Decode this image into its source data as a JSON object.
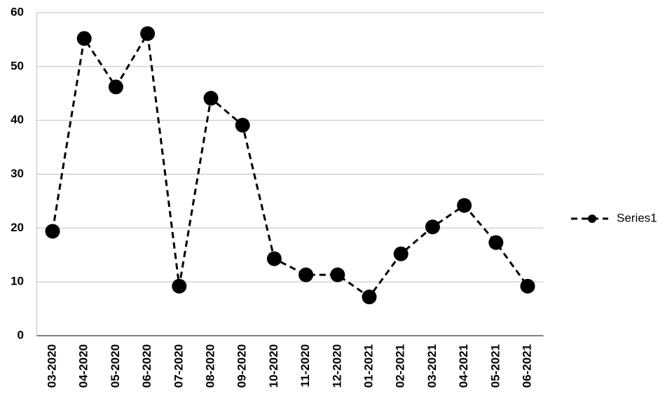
{
  "chart_data": {
    "type": "line",
    "categories": [
      "03-2020",
      "04-2020",
      "05-2020",
      "06-2020",
      "07-2020",
      "08-2020",
      "09-2020",
      "10-2020",
      "11-2020",
      "12-2020",
      "01-2021",
      "02-2021",
      "03-2021",
      "04-2021",
      "05-2021",
      "06-2021"
    ],
    "series": [
      {
        "name": "Series1",
        "color": "#000000",
        "values": [
          19.4,
          55.2,
          46.2,
          56.1,
          9.2,
          44.1,
          39.1,
          14.3,
          11.3,
          11.3,
          7.2,
          15.2,
          20.2,
          24.2,
          17.3,
          9.2
        ]
      }
    ],
    "ylim": [
      0,
      60
    ],
    "yticks": [
      0,
      10,
      20,
      30,
      40,
      50,
      60
    ],
    "grid": true,
    "legend": "right"
  }
}
